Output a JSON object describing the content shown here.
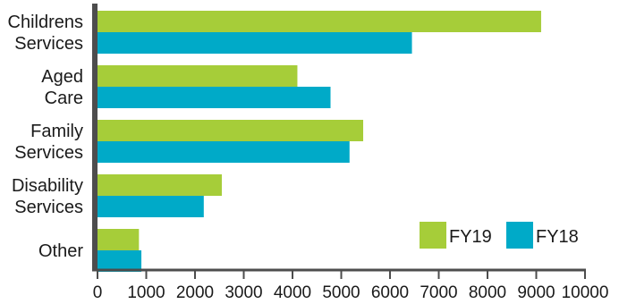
{
  "chart_data": {
    "type": "bar",
    "orientation": "horizontal",
    "categories": [
      [
        "Childrens",
        "Services"
      ],
      [
        "Aged",
        "Care"
      ],
      [
        "Family",
        "Services"
      ],
      [
        "Disability",
        "Services"
      ],
      [
        "Other"
      ]
    ],
    "series": [
      {
        "name": "FY19",
        "color": "#a6cd39",
        "values": [
          9100,
          4100,
          5450,
          2550,
          850
        ]
      },
      {
        "name": "FY18",
        "color": "#00aac8",
        "values": [
          6450,
          4780,
          5170,
          2180,
          900
        ]
      }
    ],
    "xlim": [
      0,
      10000
    ],
    "xticks": [
      "0",
      "1000",
      "2000",
      "3000",
      "4000",
      "5000",
      "6000",
      "7000",
      "8000",
      "9000",
      "10000"
    ],
    "grid": false,
    "legend_position": "bottom-right",
    "axis_color": "#4d4d4d"
  }
}
